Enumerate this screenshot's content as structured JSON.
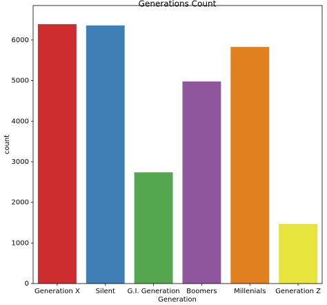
{
  "chart_data": {
    "type": "bar",
    "title": "Generations Count",
    "x_label": "Generation",
    "y_label": "count",
    "categories": [
      "Generation X",
      "Silent",
      "G.I. Generation",
      "Boomers",
      "Millenials",
      "Generation Z"
    ],
    "values": [
      6390,
      6360,
      2740,
      4980,
      5830,
      1470
    ],
    "colors": [
      "#ce2d2f",
      "#3f7fb5",
      "#55a74f",
      "#8f559d",
      "#e0801e",
      "#e8e43e"
    ],
    "ylim": [
      0,
      6850
    ],
    "yticks": [
      0,
      1000,
      2000,
      3000,
      4000,
      5000,
      6000
    ],
    "grid": false
  }
}
